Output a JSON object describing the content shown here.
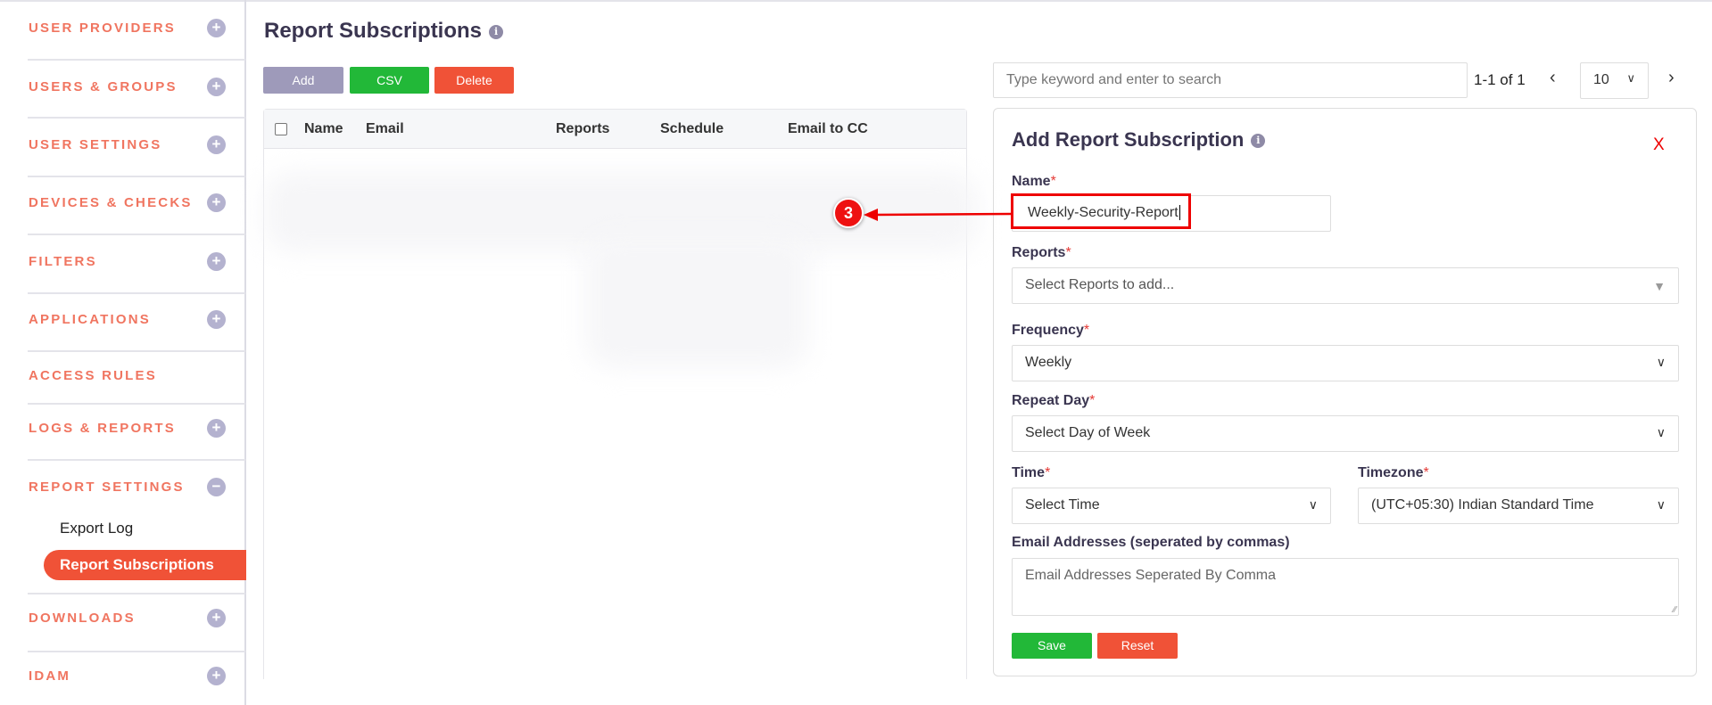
{
  "sidebar": {
    "sections": [
      {
        "label": "USER PROVIDERS",
        "icon": "plus-icon"
      },
      {
        "label": "USERS & GROUPS",
        "icon": "plus-icon"
      },
      {
        "label": "USER SETTINGS",
        "icon": "plus-icon"
      },
      {
        "label": "DEVICES & CHECKS",
        "icon": "plus-icon"
      },
      {
        "label": "FILTERS",
        "icon": "plus-icon"
      },
      {
        "label": "APPLICATIONS",
        "icon": "plus-icon"
      },
      {
        "label": "ACCESS RULES"
      },
      {
        "label": "LOGS & REPORTS",
        "icon": "plus-icon"
      },
      {
        "label": "REPORT SETTINGS",
        "icon": "minus-icon"
      },
      {
        "label": "DOWNLOADS",
        "icon": "plus-icon"
      },
      {
        "label": "IDAM",
        "icon": "plus-icon"
      }
    ],
    "sub_items": [
      "Export Log",
      "Report Subscriptions"
    ],
    "active": "Report Subscriptions"
  },
  "page": {
    "title": "Report Subscriptions"
  },
  "toolbar": {
    "add": "Add",
    "csv": "CSV",
    "delete": "Delete"
  },
  "table": {
    "columns": [
      "Name",
      "Email",
      "Reports",
      "Schedule",
      "Email to CC"
    ]
  },
  "search": {
    "placeholder": "Type keyword and enter to search"
  },
  "pagination": {
    "range": "1-1 of 1",
    "page_size": "10"
  },
  "form": {
    "title": "Add Report Subscription",
    "close": "X",
    "name_label": "Name",
    "name_value": "Weekly-Security-Report",
    "reports_label": "Reports",
    "reports_placeholder": "Select Reports to add...",
    "frequency_label": "Frequency",
    "frequency_value": "Weekly",
    "repeat_label": "Repeat Day",
    "repeat_value": "Select Day of Week",
    "time_label": "Time",
    "time_value": "Select Time",
    "timezone_label": "Timezone",
    "timezone_value": "(UTC+05:30) Indian Standard Time",
    "email_label": "Email Addresses (seperated by commas)",
    "email_placeholder": "Email Addresses Seperated By Comma",
    "save": "Save",
    "reset": "Reset",
    "required_mark": "*"
  },
  "annotation": {
    "step": "3"
  },
  "colors": {
    "accent": "#f05237",
    "green": "#22b838",
    "muted_button": "#9e9aba",
    "sidebar_text": "#f07560"
  }
}
